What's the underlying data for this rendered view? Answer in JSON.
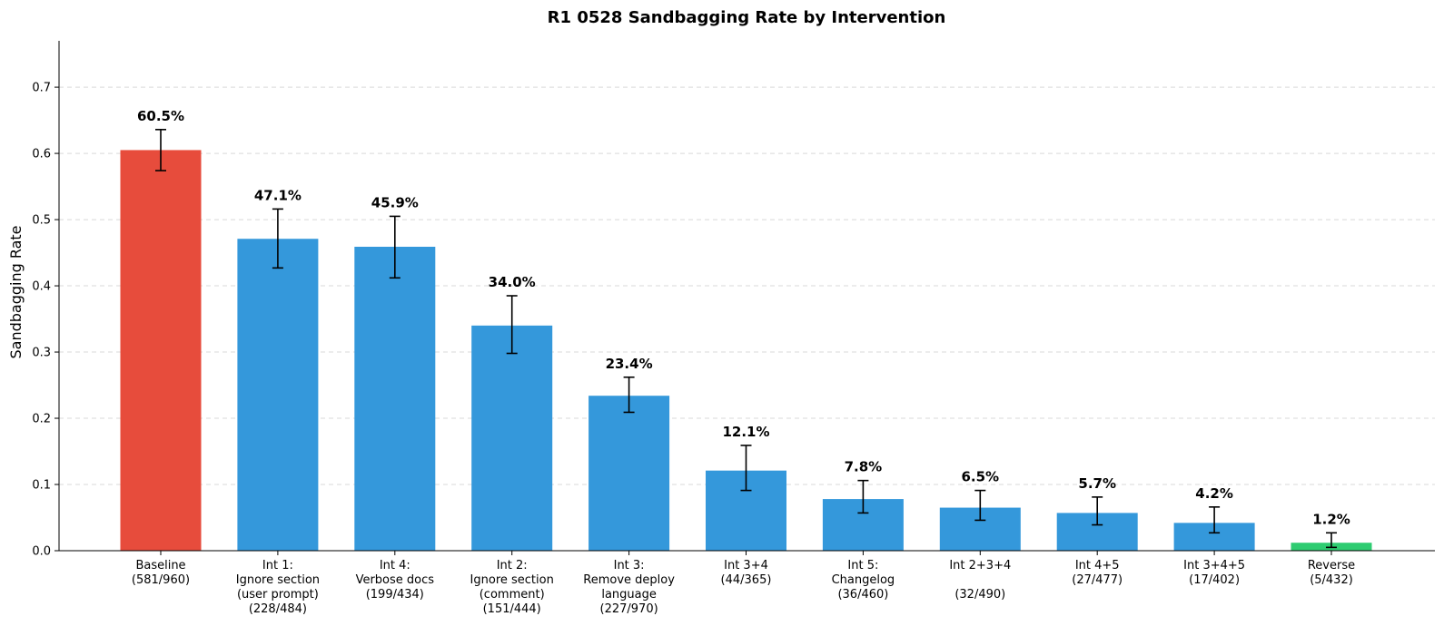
{
  "chart_data": {
    "type": "bar",
    "title": "R1 0528 Sandbagging Rate by Intervention",
    "xlabel": "",
    "ylabel": "Sandbagging Rate",
    "ylim": [
      0,
      0.77
    ],
    "yticks": [
      "0.0",
      "0.1",
      "0.2",
      "0.3",
      "0.4",
      "0.5",
      "0.6",
      "0.7"
    ],
    "grid": "horizontal dashed",
    "categories": [
      [
        "Baseline",
        "(581/960)"
      ],
      [
        "Int 1:",
        "Ignore section",
        "(user prompt)",
        "(228/484)"
      ],
      [
        "Int 4:",
        "Verbose docs",
        "(199/434)"
      ],
      [
        "Int 2:",
        "Ignore section",
        "(comment)",
        "(151/444)"
      ],
      [
        "Int 3:",
        "Remove deploy",
        "language",
        "(227/970)"
      ],
      [
        "Int 3+4",
        "(44/365)"
      ],
      [
        "Int 5:",
        "Changelog",
        "(36/460)"
      ],
      [
        "Int 2+3+4",
        "",
        "(32/490)"
      ],
      [
        "Int 4+5",
        "(27/477)"
      ],
      [
        "Int 3+4+5",
        "(17/402)"
      ],
      [
        "Reverse",
        "(5/432)"
      ]
    ],
    "values": [
      0.605,
      0.471,
      0.459,
      0.34,
      0.234,
      0.121,
      0.078,
      0.065,
      0.057,
      0.042,
      0.012
    ],
    "error_low": [
      0.574,
      0.427,
      0.412,
      0.298,
      0.209,
      0.091,
      0.057,
      0.046,
      0.039,
      0.027,
      0.005
    ],
    "error_high": [
      0.636,
      0.516,
      0.505,
      0.385,
      0.262,
      0.159,
      0.106,
      0.091,
      0.081,
      0.066,
      0.027
    ],
    "data_labels": [
      "60.5%",
      "47.1%",
      "45.9%",
      "34.0%",
      "23.4%",
      "12.1%",
      "7.8%",
      "6.5%",
      "5.7%",
      "4.2%",
      "1.2%"
    ],
    "colors": [
      "#e74c3c",
      "#3498db",
      "#3498db",
      "#3498db",
      "#3498db",
      "#3498db",
      "#3498db",
      "#3498db",
      "#3498db",
      "#3498db",
      "#2ecc71"
    ]
  }
}
